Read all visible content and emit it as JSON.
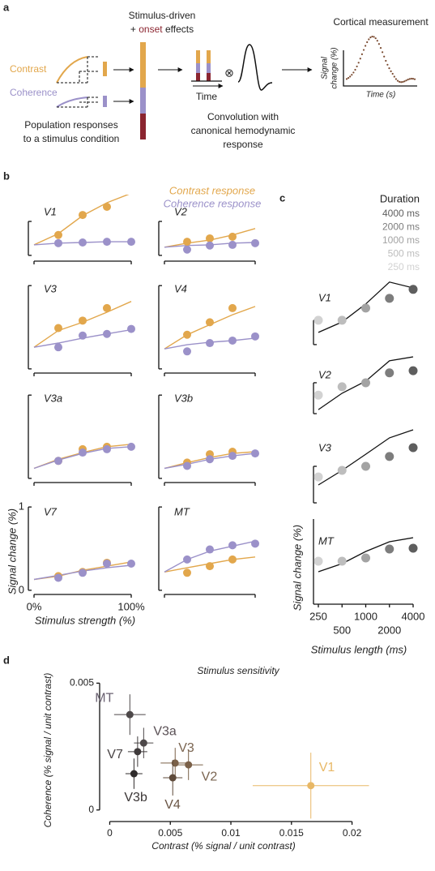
{
  "panel_labels": [
    "a",
    "b",
    "c",
    "d"
  ],
  "schematic": {
    "stimulus_driven": "Stimulus-driven",
    "onset_prefix": "+ ",
    "onset": "onset",
    "onset_suffix": " effects",
    "contrast": "Contrast",
    "coherence": "Coherence",
    "population": [
      "Population responses",
      "to a stimulus condition"
    ],
    "time": "Time",
    "operator": "⊗",
    "convolution": [
      "Convolution with",
      "canonical hemodynamic",
      "response"
    ],
    "measurement": "Cortical measurement",
    "measurement_ylabel": [
      "Signal",
      "change (%)"
    ],
    "measurement_xlabel": "Time (s)"
  },
  "panel_b": {
    "legend": [
      {
        "name": "Contrast response",
        "color": "#e2a74c"
      },
      {
        "name": "Coherence response",
        "color": "#9b91c9"
      }
    ],
    "ylabel": "Signal change (%)",
    "xlabel": "Stimulus strength (%)"
  },
  "panel_c": {
    "legend_title": "Duration",
    "legend": [
      {
        "name": "4000 ms",
        "color": "#5e5e5e"
      },
      {
        "name": "2000 ms",
        "color": "#7d7d7d"
      },
      {
        "name": "1000 ms",
        "color": "#a3a3a3"
      },
      {
        "name": "500 ms",
        "color": "#bdbdbd"
      },
      {
        "name": "250 ms",
        "color": "#d2d2d2"
      }
    ],
    "ylabel": "Signal change (%)",
    "xlabel": "Stimulus length (ms)"
  },
  "chart_data": [
    {
      "type": "line",
      "title": "V1",
      "xlim": [
        0,
        100
      ],
      "xticks": [
        0,
        100
      ],
      "ylim": [
        -0.17,
        1.55
      ],
      "yticks": [
        0,
        1
      ],
      "tick_labels": false,
      "fit_x": [
        0,
        25,
        50,
        75,
        100
      ],
      "series": [
        {
          "color": "#e2a74c",
          "x": [
            25,
            50,
            75
          ],
          "values": [
            0.6,
            1.19,
            1.43
          ],
          "fit": [
            0.31,
            0.64,
            1.17,
            1.55,
            1.83
          ]
        },
        {
          "color": "#9b91c9",
          "x": [
            25,
            50,
            75,
            100
          ],
          "values": [
            0.36,
            0.38,
            0.4,
            0.4
          ],
          "fit": [
            0.31,
            0.36,
            0.38,
            0.4,
            0.4
          ]
        }
      ]
    },
    {
      "type": "line",
      "title": "V2",
      "xlim": [
        0,
        100
      ],
      "xticks": [
        0,
        100
      ],
      "ylim": [
        -0.17,
        1.55
      ],
      "yticks": [
        0,
        1
      ],
      "tick_labels": false,
      "fit_x": [
        0,
        25,
        50,
        75,
        100
      ],
      "series": [
        {
          "color": "#e2a74c",
          "x": [
            25,
            50,
            75
          ],
          "values": [
            0.4,
            0.5,
            0.55
          ],
          "fit": [
            0.24,
            0.36,
            0.45,
            0.6,
            0.79
          ]
        },
        {
          "color": "#9b91c9",
          "x": [
            25,
            50,
            75,
            100
          ],
          "values": [
            0.17,
            0.29,
            0.31,
            0.36
          ],
          "fit": [
            0.24,
            0.29,
            0.31,
            0.36,
            0.38
          ]
        }
      ]
    },
    {
      "type": "line",
      "title": "V3",
      "xlim": [
        0,
        100
      ],
      "xticks": [
        0,
        100
      ],
      "ylim": [
        -0.05,
        1.07
      ],
      "yticks": [
        0,
        1
      ],
      "tick_labels": false,
      "fit_x": [
        0,
        25,
        50,
        75,
        100
      ],
      "series": [
        {
          "color": "#e2a74c",
          "x": [
            25,
            50,
            75
          ],
          "values": [
            0.49,
            0.58,
            0.73
          ],
          "fit": [
            0.26,
            0.46,
            0.56,
            0.68,
            0.81
          ]
        },
        {
          "color": "#9b91c9",
          "x": [
            25,
            50,
            75,
            100
          ],
          "values": [
            0.26,
            0.4,
            0.42,
            0.48
          ],
          "fit": [
            0.26,
            0.31,
            0.37,
            0.42,
            0.47
          ]
        }
      ]
    },
    {
      "type": "line",
      "title": "V4",
      "xlim": [
        0,
        100
      ],
      "xticks": [
        0,
        100
      ],
      "ylim": [
        -0.05,
        1.07
      ],
      "yticks": [
        0,
        1
      ],
      "tick_labels": false,
      "fit_x": [
        0,
        25,
        50,
        75,
        100
      ],
      "series": [
        {
          "color": "#e2a74c",
          "x": [
            25,
            50,
            75
          ],
          "values": [
            0.41,
            0.56,
            0.73
          ],
          "fit": [
            0.24,
            0.41,
            0.53,
            0.65,
            0.75
          ]
        },
        {
          "color": "#9b91c9",
          "x": [
            25,
            50,
            75,
            100
          ],
          "values": [
            0.21,
            0.31,
            0.34,
            0.39
          ],
          "fit": [
            0.24,
            0.29,
            0.32,
            0.34,
            0.37
          ]
        }
      ]
    },
    {
      "type": "line",
      "title": "V3a",
      "xlim": [
        0,
        100
      ],
      "xticks": [
        0,
        100
      ],
      "ylim": [
        -0.05,
        1.07
      ],
      "yticks": [
        0,
        1
      ],
      "tick_labels": false,
      "fit_x": [
        0,
        25,
        50,
        75,
        100
      ],
      "series": [
        {
          "color": "#e2a74c",
          "x": [
            25,
            50,
            75
          ],
          "values": [
            0.21,
            0.35,
            0.38
          ],
          "fit": [
            0.12,
            0.23,
            0.31,
            0.38,
            0.41
          ]
        },
        {
          "color": "#9b91c9",
          "x": [
            25,
            50,
            75,
            100
          ],
          "values": [
            0.21,
            0.31,
            0.35,
            0.38
          ],
          "fit": [
            0.12,
            0.22,
            0.3,
            0.36,
            0.38
          ]
        }
      ]
    },
    {
      "type": "line",
      "title": "V3b",
      "xlim": [
        0,
        100
      ],
      "xticks": [
        0,
        100
      ],
      "ylim": [
        -0.05,
        1.07
      ],
      "yticks": [
        0,
        1
      ],
      "tick_labels": false,
      "fit_x": [
        0,
        25,
        50,
        75,
        100
      ],
      "series": [
        {
          "color": "#e2a74c",
          "x": [
            25,
            50,
            75
          ],
          "values": [
            0.19,
            0.29,
            0.32
          ],
          "fit": [
            0.12,
            0.19,
            0.25,
            0.3,
            0.32
          ]
        },
        {
          "color": "#9b91c9",
          "x": [
            25,
            50,
            75,
            100
          ],
          "values": [
            0.15,
            0.23,
            0.27,
            0.3
          ],
          "fit": [
            0.12,
            0.17,
            0.23,
            0.27,
            0.3
          ]
        }
      ]
    },
    {
      "type": "line",
      "title": "V7",
      "xlim": [
        0,
        100
      ],
      "xticks": [
        {
          "value": 0,
          "label": "0%"
        },
        {
          "value": 100,
          "label": "100%"
        }
      ],
      "ylim": [
        -0.05,
        1.05
      ],
      "yticks": [
        0,
        1
      ],
      "tick_labels": true,
      "fit_x": [
        0,
        25,
        50,
        75,
        100
      ],
      "series": [
        {
          "color": "#e2a74c",
          "x": [
            25,
            50,
            75
          ],
          "values": [
            0.17,
            0.22,
            0.33
          ],
          "fit": [
            0.13,
            0.17,
            0.24,
            0.29,
            0.34
          ]
        },
        {
          "color": "#9b91c9",
          "x": [
            25,
            50,
            75,
            100
          ],
          "values": [
            0.15,
            0.21,
            0.32,
            0.32
          ],
          "fit": [
            0.13,
            0.18,
            0.23,
            0.27,
            0.3
          ]
        }
      ]
    },
    {
      "type": "line",
      "title": "MT",
      "xlim": [
        0,
        100
      ],
      "xticks": [
        0,
        100
      ],
      "ylim": [
        -0.05,
        1.05
      ],
      "yticks": [
        0,
        1
      ],
      "tick_labels": false,
      "fit_x": [
        0,
        25,
        50,
        75,
        100
      ],
      "series": [
        {
          "color": "#e2a74c",
          "x": [
            25,
            50,
            75
          ],
          "values": [
            0.21,
            0.29,
            0.37
          ],
          "fit": [
            0.22,
            0.27,
            0.32,
            0.37,
            0.4
          ]
        },
        {
          "color": "#9b91c9",
          "x": [
            25,
            50,
            75,
            100
          ],
          "values": [
            0.37,
            0.49,
            0.54,
            0.56
          ],
          "fit": [
            0.22,
            0.37,
            0.47,
            0.53,
            0.59
          ]
        }
      ]
    },
    {
      "type": "line",
      "title": "V1",
      "xscale": "log",
      "xlim": [
        250,
        4000
      ],
      "xticks": [],
      "ylim": [
        -0.17,
        2.83
      ],
      "yticks": [
        0,
        1
      ],
      "x": [
        250,
        500,
        1000,
        2000,
        4000
      ],
      "values": [
        1.0,
        1.0,
        1.5,
        1.9,
        2.27
      ],
      "model": [
        0.5,
        0.93,
        1.67,
        2.57,
        2.33
      ],
      "model_color": "#111"
    },
    {
      "type": "line",
      "title": "V2",
      "xscale": "log",
      "xlim": [
        250,
        4000
      ],
      "xticks": [],
      "ylim": [
        -0.13,
        1.97
      ],
      "yticks": [
        0,
        1
      ],
      "x": [
        250,
        500,
        1000,
        2000,
        4000
      ],
      "values": [
        0.6,
        0.87,
        1.0,
        1.32,
        1.39
      ],
      "model": [
        0.13,
        0.66,
        1.05,
        1.71,
        1.84
      ],
      "model_color": "#111"
    },
    {
      "type": "line",
      "title": "V3",
      "xscale": "log",
      "xlim": [
        250,
        4000
      ],
      "xticks": [],
      "ylim": [
        -0.11,
        2.11
      ],
      "yticks": [
        0,
        1
      ],
      "x": [
        250,
        500,
        1000,
        2000,
        4000
      ],
      "values": [
        0.71,
        0.89,
        1.0,
        1.27,
        1.51
      ],
      "model": [
        0.49,
        0.89,
        1.33,
        1.78,
        2.0
      ],
      "model_color": "#111"
    },
    {
      "type": "line",
      "title": "MT",
      "xscale": "log",
      "xlim": [
        250,
        4000
      ],
      "xticks": [
        250,
        500,
        1000,
        2000,
        4000
      ],
      "ylim": [
        0,
        1
      ],
      "yticks": [],
      "x": [
        250,
        500,
        1000,
        2000,
        4000
      ],
      "values": [
        0.48,
        0.48,
        0.52,
        0.63,
        0.64
      ],
      "model": [
        0.35,
        0.45,
        0.6,
        0.72,
        0.77
      ],
      "model_color": "#111"
    },
    {
      "type": "scatter",
      "title": "Stimulus sensitivity",
      "xlabel": "Contrast (% signal / unit contrast)",
      "ylabel": "Coherence (% signal / unit contrast)",
      "xlim": [
        -0.0005,
        0.0217
      ],
      "xticks": [
        0,
        0.005,
        0.01,
        0.015,
        0.02
      ],
      "ylim": [
        -0.0002,
        0.0053
      ],
      "yticks": [
        0,
        0.005
      ],
      "categories": [
        "MT",
        "V3a",
        "V7",
        "V3b",
        "V3",
        "V2",
        "V4",
        "V1"
      ],
      "x": [
        0.00166,
        0.0028,
        0.0023,
        0.002,
        0.0054,
        0.0065,
        0.0052,
        0.0166
      ],
      "values": [
        0.00376,
        0.00264,
        0.0023,
        0.00143,
        0.00185,
        0.00178,
        0.00127,
        0.00096
      ],
      "xerr": [
        0.0013,
        0.0008,
        0.0008,
        0.0007,
        0.0012,
        0.0012,
        0.0008,
        0.0048
      ],
      "yerr": [
        0.0008,
        0.0006,
        0.0006,
        0.0006,
        0.0006,
        0.0006,
        0.0007,
        0.0013
      ],
      "colors": [
        "#4d4849",
        "#4d4849",
        "#3f3a3b",
        "#2f2b2b",
        "#7a6048",
        "#7a6048",
        "#5e4a3a",
        "#e8b866"
      ],
      "label_colors": [
        "#6b6272",
        "#5a5055",
        "#4a4546",
        "#3a3535",
        "#7a6450",
        "#7a6450",
        "#6a5545",
        "#e8b866"
      ]
    }
  ]
}
